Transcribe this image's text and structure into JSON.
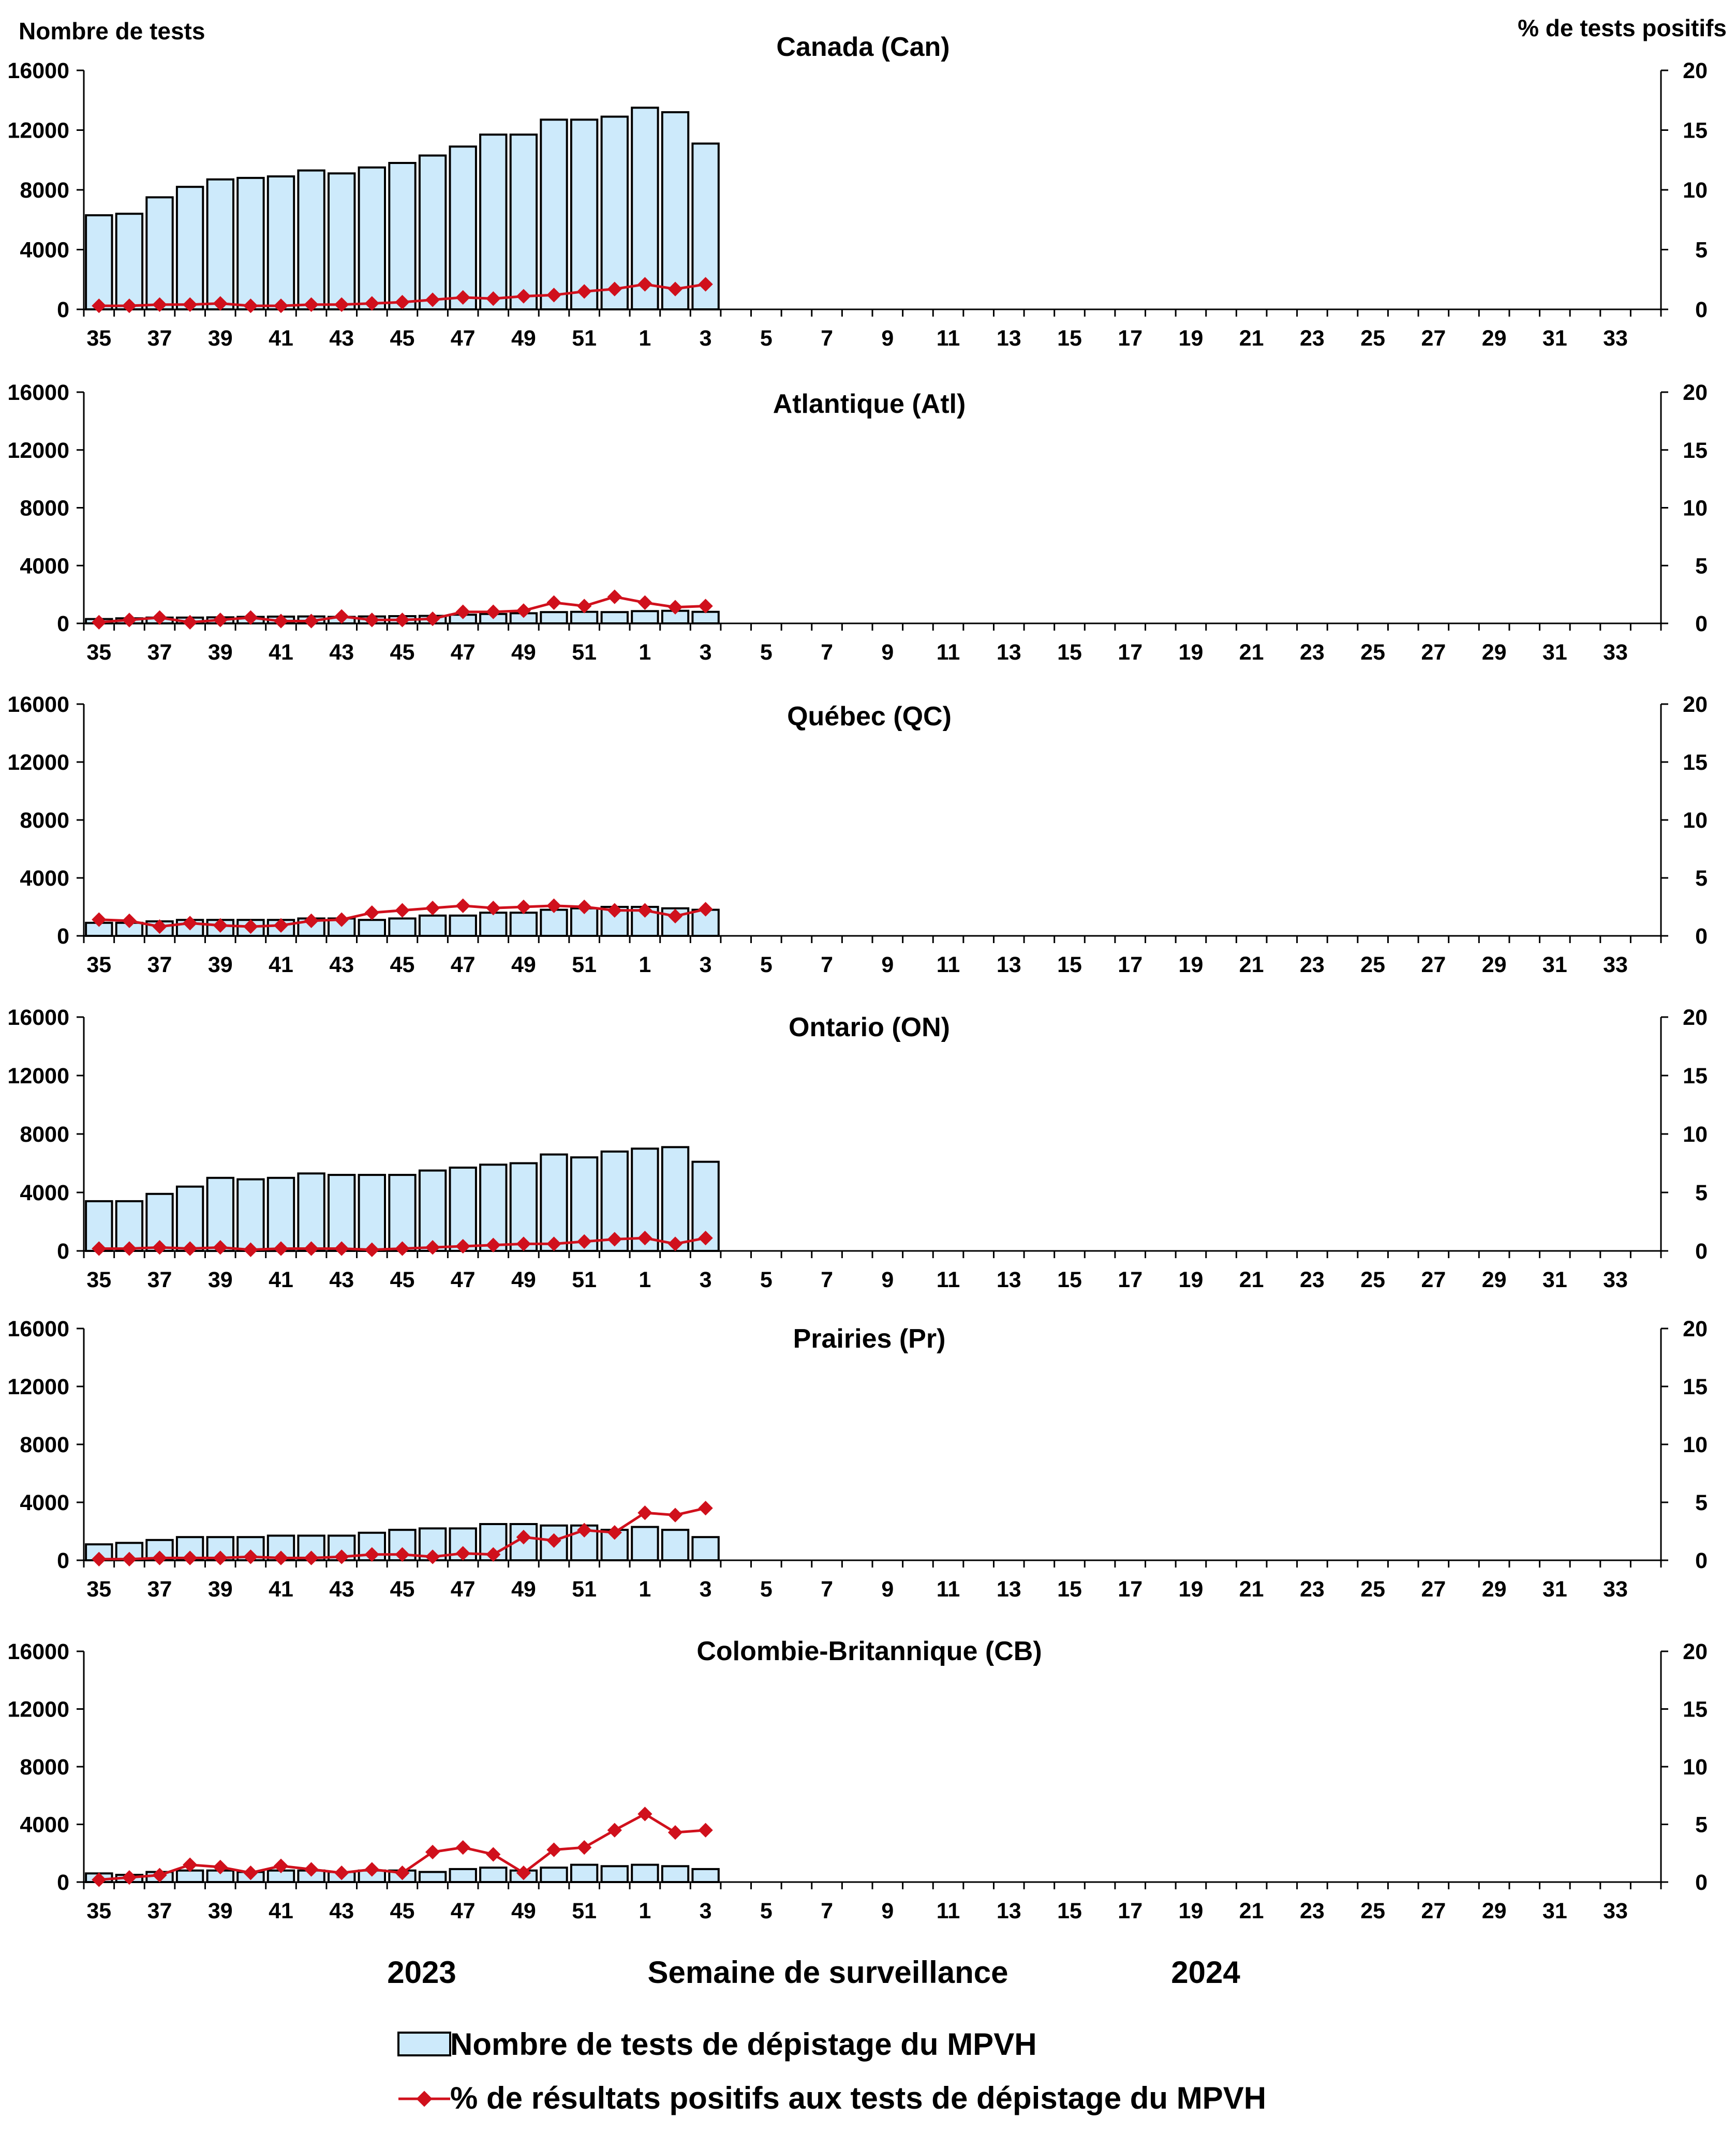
{
  "labels": {
    "y_left": "Nombre de tests",
    "y_right": "% de tests positifs",
    "x_axis": "Semaine de surveillance",
    "year_left": "2023",
    "year_right": "2024"
  },
  "legend": {
    "bars": "Nombre de tests de dépistage du MPVH",
    "line": "% de résultats positifs aux tests de dépistage du MPVH"
  },
  "colors": {
    "bar_fill": "#cdeafb",
    "bar_stroke": "#000000",
    "line": "#d0101c",
    "axis": "#000000"
  },
  "chart_data": {
    "type": "bar",
    "ylim_left": [
      0,
      16000
    ],
    "yticks_left": [
      "0",
      "4000",
      "8000",
      "12000",
      "16000"
    ],
    "ylim_right": [
      0,
      20
    ],
    "yticks_right": [
      "0",
      "5",
      "10",
      "15",
      "20"
    ],
    "categories": [
      "35",
      "36",
      "37",
      "38",
      "39",
      "40",
      "41",
      "42",
      "43",
      "44",
      "45",
      "46",
      "47",
      "48",
      "49",
      "50",
      "51",
      "52",
      "1",
      "2",
      "3",
      "4",
      "5",
      "6",
      "7",
      "8",
      "9",
      "10",
      "11",
      "12",
      "13",
      "14",
      "15",
      "16",
      "17",
      "18",
      "19",
      "20",
      "21",
      "22",
      "23",
      "24",
      "25",
      "26",
      "27",
      "28",
      "29",
      "30",
      "31",
      "32",
      "33",
      "34"
    ],
    "tick_labels": [
      "35",
      "",
      "37",
      "",
      "39",
      "",
      "41",
      "",
      "43",
      "",
      "45",
      "",
      "47",
      "",
      "49",
      "",
      "51",
      "",
      "1",
      "",
      "3",
      "",
      "5",
      "",
      "7",
      "",
      "9",
      "",
      "11",
      "",
      "13",
      "",
      "15",
      "",
      "17",
      "",
      "19",
      "",
      "21",
      "",
      "23",
      "",
      "25",
      "",
      "27",
      "",
      "29",
      "",
      "31",
      "",
      "33",
      ""
    ],
    "panels": [
      {
        "title": "Canada (Can)",
        "tests": [
          6300,
          6400,
          7500,
          8200,
          8700,
          8800,
          8900,
          9300,
          9100,
          9500,
          9800,
          10300,
          10900,
          11700,
          11700,
          12700,
          12700,
          12900,
          13500,
          13200,
          11100
        ],
        "percent_positive": [
          0.3,
          0.3,
          0.4,
          0.4,
          0.5,
          0.3,
          0.3,
          0.4,
          0.4,
          0.5,
          0.6,
          0.8,
          1.0,
          0.9,
          1.1,
          1.2,
          1.5,
          1.7,
          2.1,
          1.7,
          2.1
        ]
      },
      {
        "title": "Atlantique (Atl)",
        "tests": [
          300,
          350,
          400,
          400,
          420,
          450,
          470,
          480,
          450,
          480,
          500,
          520,
          600,
          650,
          700,
          780,
          800,
          780,
          850,
          870,
          800
        ],
        "percent_positive": [
          0.1,
          0.3,
          0.5,
          0.1,
          0.3,
          0.5,
          0.2,
          0.2,
          0.6,
          0.3,
          0.3,
          0.4,
          1.0,
          1.0,
          1.1,
          1.8,
          1.5,
          2.3,
          1.8,
          1.4,
          1.5
        ]
      },
      {
        "title": "Québec (QC)",
        "tests": [
          900,
          900,
          1000,
          1100,
          1100,
          1100,
          1100,
          1200,
          1200,
          1100,
          1200,
          1400,
          1400,
          1600,
          1600,
          1800,
          1900,
          2000,
          2000,
          1900,
          1800
        ],
        "percent_positive": [
          1.4,
          1.3,
          0.8,
          1.1,
          0.9,
          0.8,
          0.9,
          1.3,
          1.4,
          2.0,
          2.2,
          2.4,
          2.6,
          2.4,
          2.5,
          2.6,
          2.5,
          2.2,
          2.2,
          1.7,
          2.3
        ]
      },
      {
        "title": "Ontario (ON)",
        "tests": [
          3400,
          3400,
          3900,
          4400,
          5000,
          4900,
          5000,
          5300,
          5200,
          5200,
          5200,
          5500,
          5700,
          5900,
          6000,
          6600,
          6400,
          6800,
          7000,
          7100,
          6100
        ],
        "percent_positive": [
          0.2,
          0.2,
          0.3,
          0.2,
          0.3,
          0.1,
          0.2,
          0.2,
          0.2,
          0.1,
          0.2,
          0.3,
          0.4,
          0.5,
          0.6,
          0.6,
          0.8,
          1.0,
          1.1,
          0.6,
          1.1
        ]
      },
      {
        "title": "Prairies (Pr)",
        "tests": [
          1100,
          1200,
          1400,
          1600,
          1600,
          1600,
          1700,
          1700,
          1700,
          1900,
          2100,
          2200,
          2200,
          2500,
          2500,
          2400,
          2400,
          2100,
          2300,
          2100,
          1600
        ],
        "percent_positive": [
          0.1,
          0.1,
          0.2,
          0.2,
          0.2,
          0.3,
          0.2,
          0.2,
          0.3,
          0.5,
          0.5,
          0.3,
          0.6,
          0.5,
          2.0,
          1.7,
          2.6,
          2.4,
          4.1,
          3.9,
          4.5
        ]
      },
      {
        "title": "Colombie-Britannique (CB)",
        "tests": [
          600,
          500,
          700,
          800,
          800,
          700,
          800,
          800,
          700,
          800,
          800,
          700,
          900,
          1000,
          800,
          1000,
          1200,
          1100,
          1200,
          1100,
          900
        ],
        "percent_positive": [
          0.2,
          0.4,
          0.6,
          1.5,
          1.3,
          0.8,
          1.4,
          1.1,
          0.8,
          1.1,
          0.8,
          2.6,
          3.0,
          2.4,
          0.8,
          2.8,
          3.0,
          4.5,
          5.9,
          4.3,
          4.5
        ]
      }
    ]
  }
}
